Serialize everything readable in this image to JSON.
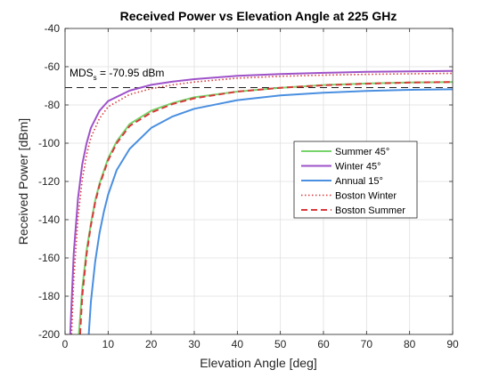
{
  "chart_data": {
    "type": "line",
    "title": "Received Power vs Elevation Angle at 225 GHz",
    "xlabel": "Elevation Angle [deg]",
    "ylabel": "Received Power [dBm]",
    "xlim": [
      0,
      90
    ],
    "ylim": [
      -200,
      -40
    ],
    "xticks": [
      0,
      10,
      20,
      30,
      40,
      50,
      60,
      70,
      80,
      90
    ],
    "yticks": [
      -200,
      -180,
      -160,
      -140,
      -120,
      -100,
      -80,
      -60,
      -40
    ],
    "grid": true,
    "legend_position": "right",
    "mds": {
      "value": -70.95,
      "label_main": "MDS",
      "label_sub": "s",
      "label_value": " = -70.95 dBm"
    },
    "series": [
      {
        "name": "Summer 45°",
        "color": "#77d46b",
        "style": "solid",
        "x": [
          3.2,
          4,
          5,
          6,
          7,
          8,
          10,
          12,
          15,
          20,
          25,
          30,
          40,
          50,
          60,
          70,
          80,
          90
        ],
        "y": [
          -200,
          -176,
          -156,
          -142,
          -130,
          -121,
          -108,
          -99,
          -90,
          -83,
          -79,
          -76,
          -73,
          -71,
          -69.6,
          -68.8,
          -68.3,
          -68
        ]
      },
      {
        "name": "Winter 45°",
        "color": "#9e52c9",
        "style": "solid",
        "x": [
          1.2,
          2,
          3,
          4,
          5,
          6,
          8,
          10,
          15,
          20,
          25,
          30,
          40,
          50,
          60,
          70,
          80,
          90
        ],
        "y": [
          -200,
          -158,
          -129,
          -111,
          -100,
          -92,
          -83,
          -78,
          -72.5,
          -69.5,
          -67.8,
          -66.5,
          -64.8,
          -63.8,
          -63.2,
          -62.7,
          -62.4,
          -62.2
        ]
      },
      {
        "name": "Annual 15°",
        "color": "#4a8fe0",
        "style": "solid",
        "x": [
          5.5,
          6,
          7,
          8,
          9,
          10,
          12,
          15,
          20,
          25,
          30,
          40,
          50,
          60,
          70,
          80,
          90
        ],
        "y": [
          -200,
          -183,
          -162,
          -147,
          -136,
          -127,
          -114,
          -103,
          -92,
          -86,
          -82,
          -77.5,
          -75,
          -73.6,
          -72.7,
          -72.1,
          -71.8
        ]
      },
      {
        "name": "Boston Winter",
        "color": "#d9393b",
        "style": "dotted",
        "x": [
          1.5,
          2,
          3,
          4,
          5,
          6,
          8,
          10,
          15,
          20,
          25,
          30,
          40,
          50,
          60,
          70,
          80,
          90
        ],
        "y": [
          -200,
          -172,
          -139,
          -119,
          -106,
          -97,
          -87,
          -81,
          -74.5,
          -71.5,
          -69.5,
          -68,
          -66,
          -65,
          -64.4,
          -64,
          -63.7,
          -63.5
        ]
      },
      {
        "name": "Boston Summer",
        "color": "#d9393b",
        "style": "dashed",
        "x": [
          3.5,
          4,
          5,
          6,
          7,
          8,
          10,
          12,
          15,
          20,
          25,
          30,
          40,
          50,
          60,
          70,
          80,
          90
        ],
        "y": [
          -200,
          -180,
          -158,
          -143,
          -131,
          -122,
          -109,
          -100,
          -91,
          -84,
          -79.5,
          -76.5,
          -73,
          -71,
          -69.7,
          -68.9,
          -68.3,
          -68
        ]
      }
    ]
  }
}
